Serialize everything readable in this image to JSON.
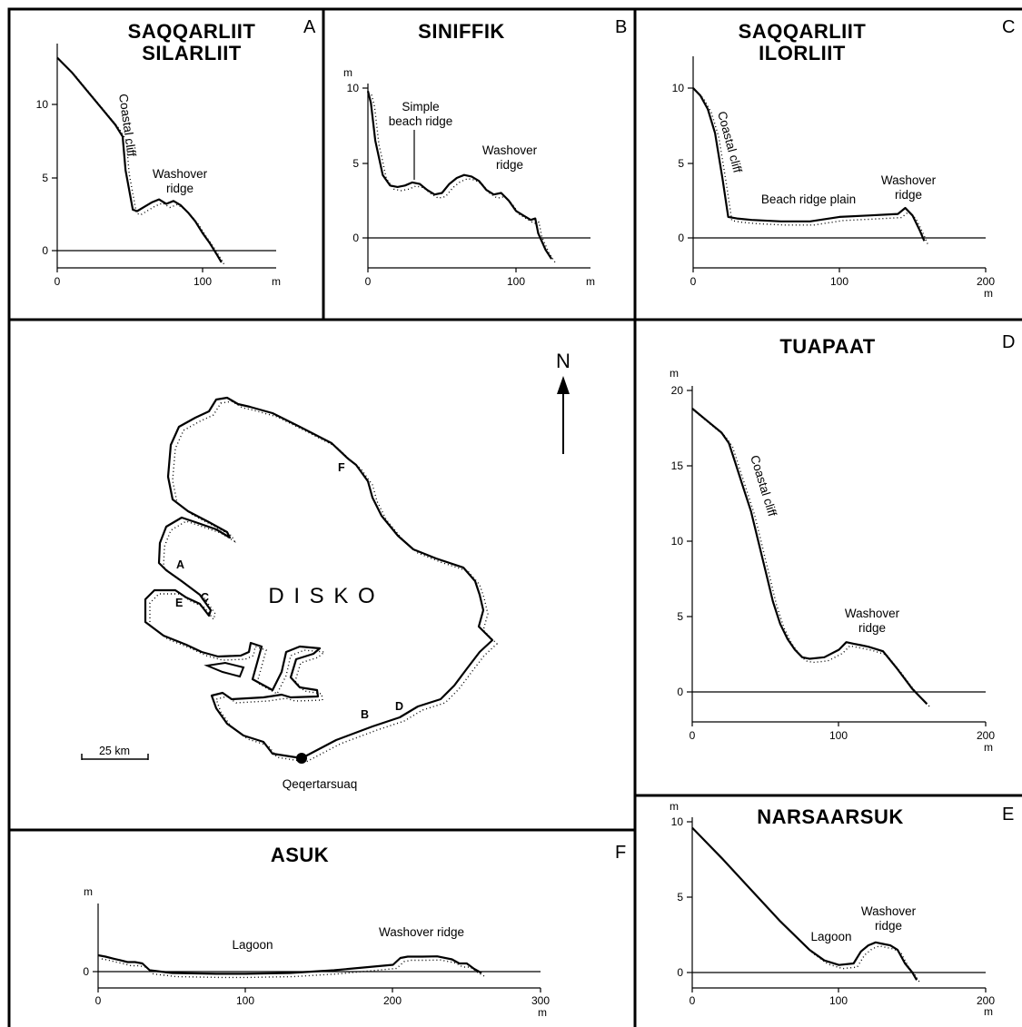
{
  "map": {
    "island_label": "D I S K O",
    "town_label": "Qeqertarsuaq",
    "north_label": "N",
    "scale_label": "25 km",
    "site_markers": [
      "A",
      "B",
      "C",
      "D",
      "E",
      "F"
    ]
  },
  "panels": [
    {
      "letter": "A",
      "title_lines": [
        "SAQQARLIIT",
        "SILARLIIT"
      ],
      "y_unit": "",
      "x_unit": "m",
      "x_ticks": [
        "0",
        "100"
      ],
      "y_ticks": [
        "0",
        "5",
        "10"
      ],
      "annotations": [
        "Coastal cliff",
        "Washover",
        "ridge"
      ],
      "profile": {
        "x": [
          0,
          10,
          20,
          30,
          40,
          45,
          47,
          52,
          55,
          60,
          65,
          70,
          75,
          80,
          85,
          90,
          95,
          100,
          105,
          110,
          113
        ],
        "y": [
          13.2,
          12.2,
          11.0,
          9.8,
          8.6,
          7.8,
          5.5,
          2.8,
          2.7,
          3.0,
          3.3,
          3.5,
          3.2,
          3.4,
          3.1,
          2.6,
          2.0,
          1.2,
          0.5,
          -0.3,
          -0.8
        ]
      }
    },
    {
      "letter": "B",
      "title_lines": [
        "SINIFFIK"
      ],
      "y_unit": "m",
      "x_unit": "m",
      "x_ticks": [
        "0",
        "100"
      ],
      "y_ticks": [
        "0",
        "5",
        "10"
      ],
      "annotations": [
        "Simple",
        "beach ridge",
        "Washover",
        "ridge"
      ],
      "profile": {
        "x": [
          0,
          2,
          5,
          10,
          15,
          20,
          25,
          30,
          35,
          40,
          45,
          50,
          55,
          60,
          65,
          70,
          75,
          80,
          85,
          90,
          95,
          100,
          105,
          110,
          113,
          115,
          120,
          124
        ],
        "y": [
          9.8,
          9.0,
          6.5,
          4.2,
          3.5,
          3.4,
          3.5,
          3.7,
          3.6,
          3.2,
          2.9,
          3.0,
          3.6,
          4.0,
          4.2,
          4.1,
          3.8,
          3.2,
          2.9,
          3.0,
          2.5,
          1.8,
          1.5,
          1.2,
          1.3,
          0.3,
          -0.8,
          -1.4
        ]
      }
    },
    {
      "letter": "C",
      "title_lines": [
        "SAQQARLIIT",
        "ILORLIIT"
      ],
      "y_unit": "",
      "x_unit": "m",
      "x_ticks": [
        "0",
        "100",
        "200"
      ],
      "y_ticks": [
        "0",
        "5",
        "10"
      ],
      "annotations": [
        "Coastal cliff",
        "Beach ridge plain",
        "Washover",
        "ridge"
      ],
      "profile": {
        "x": [
          0,
          5,
          10,
          15,
          20,
          24,
          30,
          40,
          60,
          80,
          100,
          120,
          140,
          145,
          150,
          155,
          158
        ],
        "y": [
          10.0,
          9.5,
          8.6,
          7.0,
          4.0,
          1.4,
          1.3,
          1.2,
          1.1,
          1.1,
          1.4,
          1.5,
          1.6,
          2.0,
          1.5,
          0.5,
          -0.2
        ]
      }
    },
    {
      "letter": "D",
      "title_lines": [
        "TUAPAAT"
      ],
      "y_unit": "m",
      "x_unit": "m",
      "x_ticks": [
        "0",
        "100",
        "200"
      ],
      "y_ticks": [
        "0",
        "5",
        "10",
        "15",
        "20"
      ],
      "annotations": [
        "Coastal cliff",
        "Washover",
        "ridge"
      ],
      "profile": {
        "x": [
          0,
          10,
          20,
          25,
          30,
          35,
          40,
          45,
          50,
          55,
          60,
          65,
          70,
          75,
          80,
          90,
          100,
          105,
          110,
          115,
          120,
          130,
          140,
          150,
          160
        ],
        "y": [
          18.8,
          18.0,
          17.2,
          16.5,
          15.0,
          13.5,
          12.0,
          10.0,
          8.0,
          6.0,
          4.5,
          3.5,
          2.8,
          2.3,
          2.2,
          2.3,
          2.8,
          3.3,
          3.2,
          3.1,
          3.0,
          2.7,
          1.5,
          0.2,
          -0.8
        ]
      }
    },
    {
      "letter": "E",
      "title_lines": [
        "NARSAARSUK"
      ],
      "y_unit": "m",
      "x_unit": "m",
      "x_ticks": [
        "0",
        "100",
        "200"
      ],
      "y_ticks": [
        "0",
        "5",
        "10"
      ],
      "annotations": [
        "Lagoon",
        "Washover",
        "ridge"
      ],
      "profile": {
        "x": [
          0,
          20,
          40,
          60,
          80,
          90,
          100,
          110,
          115,
          120,
          125,
          130,
          135,
          140,
          145,
          150,
          153
        ],
        "y": [
          9.6,
          7.6,
          5.5,
          3.4,
          1.5,
          0.8,
          0.5,
          0.6,
          1.4,
          1.8,
          2.0,
          1.9,
          1.8,
          1.5,
          0.6,
          0.0,
          -0.5
        ]
      }
    },
    {
      "letter": "F",
      "title_lines": [
        "ASUK"
      ],
      "y_unit": "m",
      "x_unit": "m",
      "x_ticks": [
        "0",
        "100",
        "200",
        "300"
      ],
      "y_ticks": [
        "0"
      ],
      "annotations": [
        "Lagoon",
        "Washover ridge"
      ],
      "profile": {
        "x": [
          0,
          5,
          10,
          15,
          20,
          25,
          30,
          35,
          50,
          80,
          100,
          130,
          160,
          180,
          200,
          205,
          210,
          220,
          230,
          240,
          245,
          250,
          255,
          260
        ],
        "y": [
          0.6,
          0.55,
          0.48,
          0.42,
          0.35,
          0.35,
          0.3,
          0.05,
          -0.05,
          -0.08,
          -0.08,
          -0.05,
          0.05,
          0.15,
          0.25,
          0.5,
          0.55,
          0.55,
          0.56,
          0.45,
          0.3,
          0.3,
          0.1,
          -0.05
        ]
      }
    }
  ]
}
